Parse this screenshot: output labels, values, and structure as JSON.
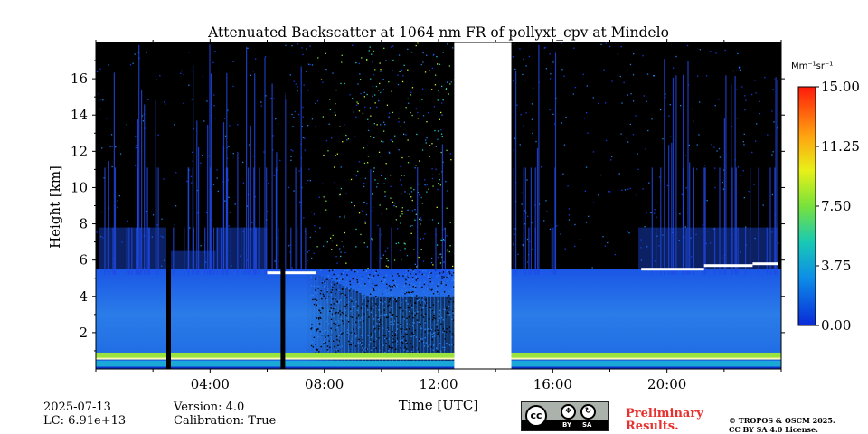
{
  "chart_data": {
    "type": "heatmap",
    "title": "Attenuated Backscatter at 1064 nm FR of pollyxt_cpv at Mindelo",
    "xlabel": "Time [UTC]",
    "ylabel": "Height [km]",
    "xlim_hours": [
      0,
      24
    ],
    "ylim_km": [
      0,
      18
    ],
    "x_tick_labels": [
      {
        "hour": 4,
        "label": "04:00"
      },
      {
        "hour": 8,
        "label": "08:00"
      },
      {
        "hour": 12,
        "label": "12:00"
      },
      {
        "hour": 16,
        "label": "16:00"
      },
      {
        "hour": 20,
        "label": "20:00"
      }
    ],
    "x_minor_hours": [
      0,
      2,
      6,
      10,
      14,
      18,
      22,
      24
    ],
    "y_ticks": [
      2,
      4,
      6,
      8,
      10,
      12,
      14,
      16
    ],
    "no_data_gap_hours": [
      12.55,
      14.55
    ],
    "colorbar": {
      "unit_label": "Mm⁻¹sr⁻¹",
      "min": 0,
      "max": 15,
      "ticks": [
        "0.00",
        "3.75",
        "7.50",
        "11.25",
        "15.00"
      ]
    },
    "features": {
      "surface_layer_top_km": 0.9,
      "aerosol_layer_top_km": 5.5,
      "cloud_layers": [
        {
          "start_hour": 6.0,
          "end_hour": 7.7,
          "height_km": 5.3
        },
        {
          "start_hour": 19.1,
          "end_hour": 21.3,
          "height_km": 5.5
        },
        {
          "start_hour": 21.3,
          "end_hour": 23.0,
          "height_km": 5.7
        },
        {
          "start_hour": 23.0,
          "end_hour": 23.9,
          "height_km": 5.8
        }
      ],
      "missing_profile_hours": [
        2.55,
        6.55
      ]
    }
  },
  "info": {
    "date": "2025-07-13",
    "lc": "LC: 6.91e+13",
    "version": "Version: 4.0",
    "calibration": "Calibration: True",
    "preliminary_line1": "Preliminary",
    "preliminary_line2": "Results.",
    "copyright_line1": "© TROPOS & OSCM 2025.",
    "copyright_line2": "CC BY SA 4.0 License.",
    "license_badge": {
      "cc": "cc",
      "by": "BY",
      "sa": "SA"
    }
  },
  "colors": {
    "background_sky": "#000000",
    "signal_low": "#0a3cd8",
    "signal_mid": "#5be04a",
    "signal_high": "#ff2a10",
    "gap": "#ffffff",
    "preliminary": "#e8312f"
  }
}
